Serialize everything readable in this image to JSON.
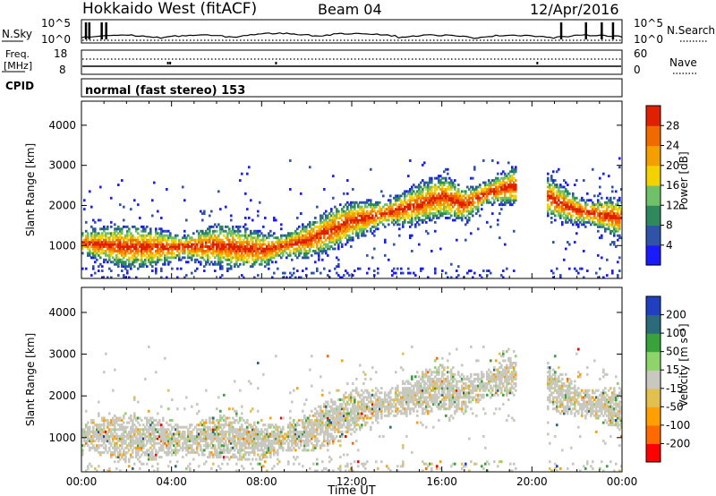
{
  "header": {
    "station": "Hokkaido West (fitACF)",
    "beam": "Beam 04",
    "date": "12/Apr/2016"
  },
  "summary": {
    "nsky_label": "N.Sky",
    "nsearch_label": "N.Search",
    "freq_label_1": "Freq.",
    "freq_label_2": "[MHz]",
    "nave_label": "Nave",
    "cpid_label": "CPID",
    "nsky_ticks": [
      "10^5",
      "10^0"
    ],
    "nsearch_ticks": [
      "10^5",
      "10^0"
    ],
    "freq_ticks": [
      "18",
      "8"
    ],
    "nave_ticks": [
      "60",
      "0"
    ],
    "cpid_text": "normal (fast stereo) 153"
  },
  "colors": {
    "power_scale": [
      "#1a1aff",
      "#2f53a8",
      "#2e8a5c",
      "#6fc068",
      "#f2d200",
      "#f59e00",
      "#f06a00",
      "#e02000"
    ],
    "velocity_scale": [
      "#ff0000",
      "#ff6a00",
      "#ffa000",
      "#e2c050",
      "#c8c8c0",
      "#8fd46a",
      "#3aa23a",
      "#2a6a7a",
      "#2040c0"
    ]
  },
  "chart_data": [
    {
      "type": "heatmap",
      "title": "",
      "xlabel": "",
      "ylabel": "Slant Range [km]",
      "x_ticks": [
        "00:00",
        "04:00",
        "08:00",
        "12:00",
        "16:00",
        "20:00",
        "00:00"
      ],
      "y_ticks": [
        1000,
        2000,
        3000,
        4000
      ],
      "ylim": [
        180,
        4600
      ],
      "colorbar_label": "Power [dB]",
      "colorbar_ticks": [
        4,
        8,
        12,
        16,
        20,
        24,
        28
      ],
      "colorbar_range": [
        0,
        32
      ],
      "grid": false
    },
    {
      "type": "heatmap",
      "title": "",
      "xlabel": "Time UT",
      "ylabel": "Slant Range [km]",
      "x_ticks": [
        "00:00",
        "04:00",
        "08:00",
        "12:00",
        "16:00",
        "20:00",
        "00:00"
      ],
      "y_ticks": [
        1000,
        2000,
        3000,
        4000
      ],
      "ylim": [
        180,
        4600
      ],
      "colorbar_label": "Velocity [m s⁻¹]",
      "colorbar_ticks": [
        -200,
        -100,
        -50,
        -15,
        15,
        50,
        100,
        200
      ],
      "grid": false
    }
  ]
}
